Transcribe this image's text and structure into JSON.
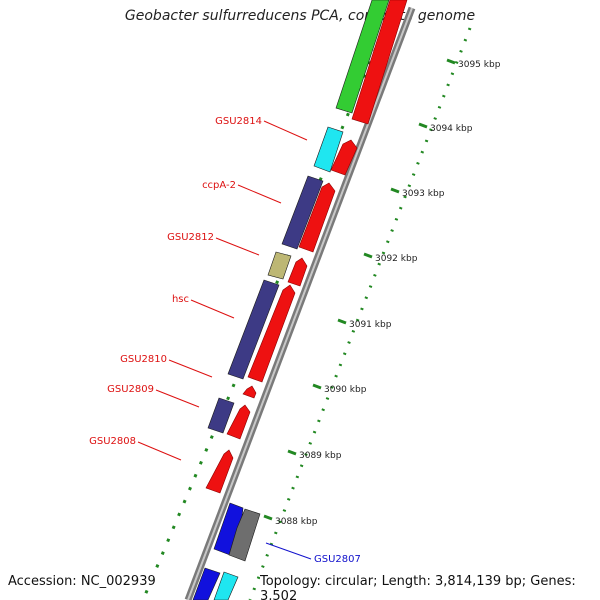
{
  "title": "Geobacter sulfurreducens PCA, complete genome",
  "footer": {
    "accession": "Accession: NC_002939",
    "topology": "Topology: circular; Length: 3,814,139 bp; Genes: 3,502"
  },
  "scale": {
    "unit": "kbp",
    "ticks": [
      "3088 kbp",
      "3089 kbp",
      "3090 kbp",
      "3091 kbp",
      "3092 kbp",
      "3093 kbp",
      "3094 kbp",
      "3095 kbp"
    ]
  },
  "colors": {
    "forward_cds": "#ee1111",
    "label_red": "#dd1111",
    "label_blue": "#1111cc",
    "purple": "#3d3a85",
    "cyan": "#1fe6f0",
    "olive": "#bdb774",
    "green": "#33cc33",
    "blue": "#1111dd",
    "gray": "#6e6e6e",
    "tick_green": "#228822"
  },
  "gene_labels": [
    {
      "text": "GSU2814",
      "color": "label_red"
    },
    {
      "text": "ccpA-2",
      "color": "label_red"
    },
    {
      "text": "GSU2812",
      "color": "label_red"
    },
    {
      "text": "hsc",
      "color": "label_red"
    },
    {
      "text": "GSU2810",
      "color": "label_red"
    },
    {
      "text": "GSU2809",
      "color": "label_red"
    },
    {
      "text": "GSU2808",
      "color": "label_red"
    },
    {
      "text": "GSU2807",
      "color": "label_blue"
    }
  ]
}
